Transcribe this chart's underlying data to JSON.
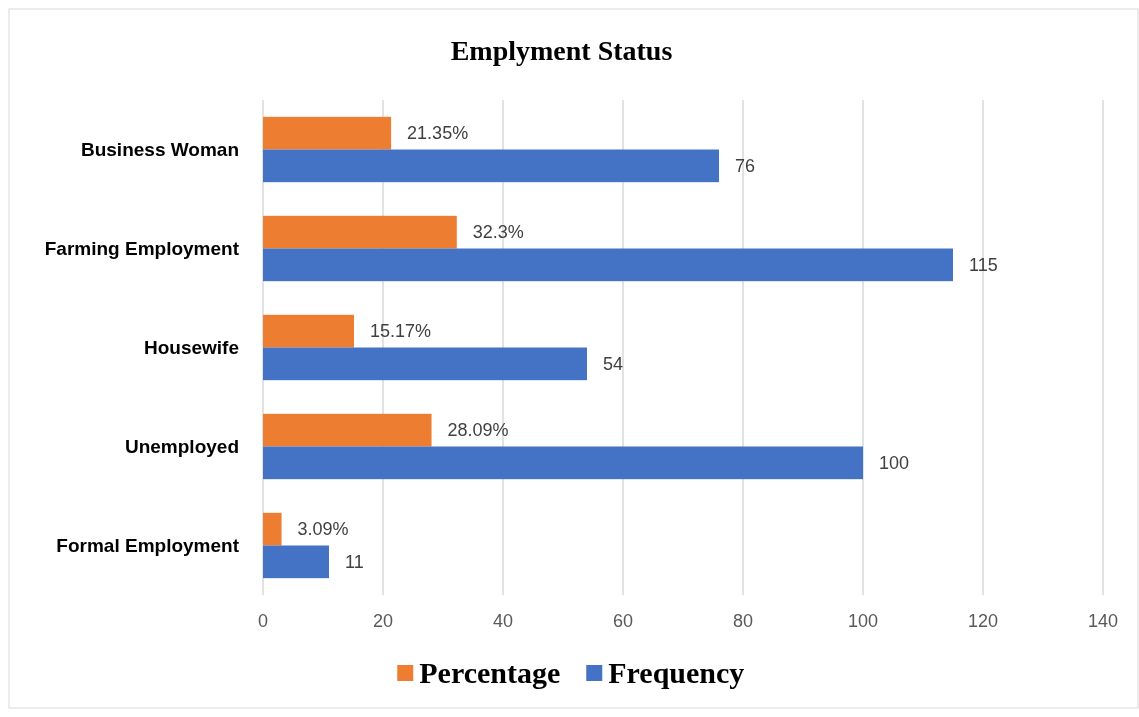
{
  "chart_data": {
    "type": "bar",
    "title": "Emplyment Status",
    "orientation": "horizontal",
    "categories": [
      "Business Woman",
      "Farming Employment",
      "Housewife",
      "Unemployed",
      "Formal Employment"
    ],
    "series": [
      {
        "name": "Percentage",
        "color": "#ed7d31",
        "values": [
          21.35,
          32.3,
          15.17,
          28.09,
          3.09
        ],
        "value_labels": [
          "21.35%",
          "32.3%",
          "15.17%",
          "28.09%",
          "3.09%"
        ]
      },
      {
        "name": "Frequency",
        "color": "#4472c4",
        "values": [
          76,
          115,
          54,
          100,
          11
        ],
        "value_labels": [
          "76",
          "115",
          "54",
          "100",
          "11"
        ]
      }
    ],
    "xlim": [
      0,
      140
    ],
    "xticks": [
      0,
      20,
      40,
      60,
      80,
      100,
      120,
      140
    ],
    "grid": "x",
    "legend": "bottom"
  }
}
